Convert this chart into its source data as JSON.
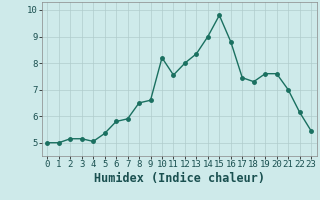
{
  "x": [
    0,
    1,
    2,
    3,
    4,
    5,
    6,
    7,
    8,
    9,
    10,
    11,
    12,
    13,
    14,
    15,
    16,
    17,
    18,
    19,
    20,
    21,
    22,
    23
  ],
  "y": [
    5.0,
    5.0,
    5.15,
    5.15,
    5.05,
    5.35,
    5.8,
    5.9,
    6.5,
    6.6,
    8.2,
    7.55,
    8.0,
    8.35,
    9.0,
    9.8,
    8.8,
    7.45,
    7.3,
    7.6,
    7.6,
    7.0,
    6.15,
    5.45
  ],
  "xlabel": "Humidex (Indice chaleur)",
  "line_color": "#1a7060",
  "marker": "o",
  "markersize": 2.5,
  "linewidth": 1.0,
  "bg_color": "#ceeaea",
  "grid_color": "#b0cccc",
  "ylim": [
    4.5,
    10.3
  ],
  "xlim": [
    -0.5,
    23.5
  ],
  "yticks": [
    5,
    6,
    7,
    8,
    9,
    10
  ],
  "xticks": [
    0,
    1,
    2,
    3,
    4,
    5,
    6,
    7,
    8,
    9,
    10,
    11,
    12,
    13,
    14,
    15,
    16,
    17,
    18,
    19,
    20,
    21,
    22,
    23
  ],
  "tick_fontsize": 6.5,
  "xlabel_fontsize": 8.5,
  "xlabel_fontweight": "bold"
}
